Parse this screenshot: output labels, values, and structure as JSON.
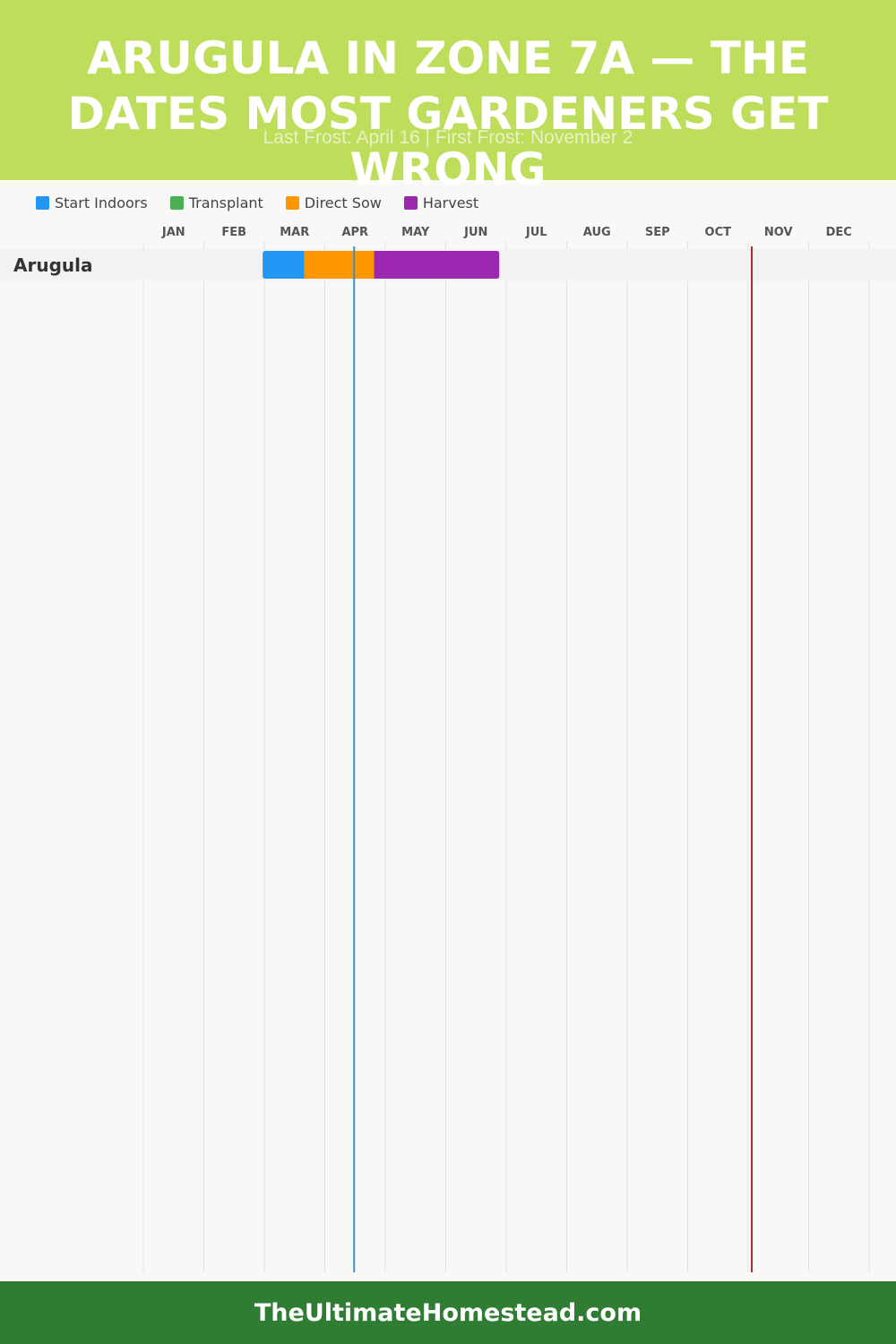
{
  "header": {
    "title": "Arugula in Zone 7a — The Dates Most Gardeners Get Wrong",
    "subtitle": "Last Frost: April 16 | First Frost: November 2"
  },
  "legend": [
    {
      "label": "Start Indoors",
      "color": "#2196f3"
    },
    {
      "label": "Transplant",
      "color": "#4caf50"
    },
    {
      "label": "Direct Sow",
      "color": "#ff9800"
    },
    {
      "label": "Harvest",
      "color": "#9c27b0"
    }
  ],
  "chart_data": {
    "type": "timeline",
    "categories": [
      "JAN",
      "FEB",
      "MAR",
      "APR",
      "MAY",
      "JUN",
      "JUL",
      "AUG",
      "SEP",
      "OCT",
      "NOV",
      "DEC"
    ],
    "rows": [
      {
        "label": "Arugula",
        "segments": [
          {
            "phase": "Start Indoors",
            "start": "Mar 1",
            "end": "Mar 22",
            "start_doy": 60,
            "end_doy": 81
          },
          {
            "phase": "Direct Sow",
            "start": "Mar 22",
            "end": "Apr 26",
            "start_doy": 81,
            "end_doy": 116
          },
          {
            "phase": "Harvest",
            "start": "Apr 26",
            "end": "Jun 28",
            "start_doy": 116,
            "end_doy": 179
          }
        ]
      }
    ],
    "markers": [
      {
        "label": "Last Frost",
        "date": "April 16",
        "doy": 106,
        "color": "#3a8fd8"
      },
      {
        "label": "First Frost",
        "date": "November 2",
        "doy": 306,
        "color": "#a3282e"
      }
    ]
  },
  "footer": {
    "text": "TheUltimateHomestead.com"
  }
}
